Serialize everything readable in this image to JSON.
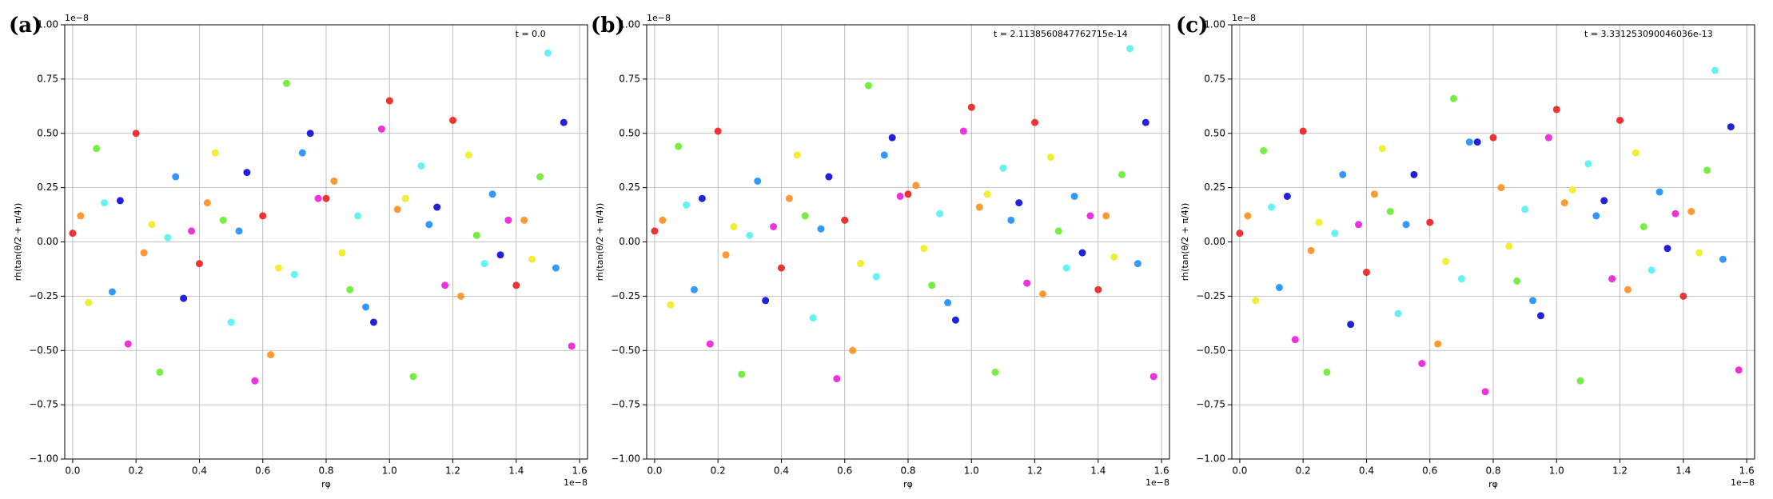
{
  "chart_data": [
    {
      "type": "scatter",
      "panel_label": "(a)",
      "annotation": "t = 0.0",
      "xlabel": "rφ",
      "ylabel": "rh(tan(θ/2 + π/4))",
      "x_offset": "1e−8",
      "y_offset": "1e−8",
      "grid": true,
      "xlim": [
        -0.025,
        1.625
      ],
      "ylim": [
        -1,
        1
      ],
      "xticks": [
        {
          "value": 0,
          "label": "0.0"
        },
        0.2,
        0.4,
        0.6,
        0.8,
        {
          "value": 1,
          "label": "1.0"
        },
        1.2,
        1.4,
        1.6
      ],
      "yticks": [
        {
          "value": -1,
          "label": "−1.00"
        },
        {
          "value": -0.75,
          "label": "−0.75"
        },
        {
          "value": -0.5,
          "label": "−0.50"
        },
        {
          "value": -0.25,
          "label": "−0.25"
        },
        {
          "value": 0,
          "label": "0.00"
        },
        0.25,
        {
          "value": 0.5,
          "label": "0.50"
        },
        0.75,
        {
          "value": 1,
          "label": "1.00"
        }
      ],
      "series": [
        {
          "color": "#ee3333",
          "x": [
            0.0,
            0.2,
            0.4,
            0.6,
            0.8,
            1.0,
            1.2,
            1.4
          ],
          "values": [
            0.04,
            0.5,
            -0.1,
            0.12,
            0.2,
            0.65,
            0.56,
            -0.2
          ]
        },
        {
          "color": "#ff9933",
          "x": [
            0.025,
            0.225,
            0.425,
            0.625,
            0.825,
            1.025,
            1.225,
            1.425
          ],
          "values": [
            0.12,
            -0.05,
            0.18,
            -0.52,
            0.28,
            0.15,
            -0.25,
            0.1
          ]
        },
        {
          "color": "#f2ee33",
          "x": [
            0.05,
            0.25,
            0.45,
            0.65,
            0.85,
            1.05,
            1.25,
            1.45
          ],
          "values": [
            -0.28,
            0.08,
            0.41,
            -0.12,
            -0.05,
            0.2,
            0.4,
            -0.08
          ]
        },
        {
          "color": "#77ee44",
          "x": [
            0.075,
            0.275,
            0.475,
            0.675,
            0.875,
            1.075,
            1.275,
            1.475
          ],
          "values": [
            0.43,
            -0.6,
            0.1,
            0.73,
            -0.22,
            -0.62,
            0.03,
            0.3
          ]
        },
        {
          "color": "#66f2f2",
          "x": [
            0.1,
            0.3,
            0.5,
            0.7,
            0.9,
            1.1,
            1.3,
            1.5
          ],
          "values": [
            0.18,
            0.02,
            -0.37,
            -0.15,
            0.12,
            0.35,
            -0.1,
            0.87
          ]
        },
        {
          "color": "#3399ff",
          "x": [
            0.125,
            0.325,
            0.525,
            0.725,
            0.925,
            1.125,
            1.325,
            1.525
          ],
          "values": [
            -0.23,
            0.3,
            0.05,
            0.41,
            -0.3,
            0.08,
            0.22,
            -0.12
          ]
        },
        {
          "color": "#2222dd",
          "x": [
            0.15,
            0.35,
            0.55,
            0.75,
            0.95,
            1.15,
            1.35,
            1.55
          ],
          "values": [
            0.19,
            -0.26,
            0.32,
            0.5,
            -0.37,
            0.16,
            -0.06,
            0.55
          ]
        },
        {
          "color": "#ee33dd",
          "x": [
            0.175,
            0.375,
            0.575,
            0.775,
            0.975,
            1.175,
            1.375,
            1.575
          ],
          "values": [
            -0.47,
            0.05,
            -0.64,
            0.2,
            0.52,
            -0.2,
            0.1,
            -0.48
          ]
        }
      ]
    },
    {
      "type": "scatter",
      "panel_label": "(b)",
      "annotation": "t = 2.1138560847762715e-14",
      "xlabel": "rφ",
      "ylabel": "rh(tan(θ/2 + π/4))",
      "x_offset": "1e−8",
      "y_offset": "1e−8",
      "grid": true,
      "xlim": [
        -0.025,
        1.625
      ],
      "ylim": [
        -1,
        1
      ],
      "xticks": [
        {
          "value": 0,
          "label": "0.0"
        },
        0.2,
        0.4,
        0.6,
        0.8,
        {
          "value": 1,
          "label": "1.0"
        },
        1.2,
        1.4,
        1.6
      ],
      "yticks": [
        {
          "value": -1,
          "label": "−1.00"
        },
        {
          "value": -0.75,
          "label": "−0.75"
        },
        {
          "value": -0.5,
          "label": "−0.50"
        },
        {
          "value": -0.25,
          "label": "−0.25"
        },
        {
          "value": 0,
          "label": "0.00"
        },
        0.25,
        {
          "value": 0.5,
          "label": "0.50"
        },
        0.75,
        {
          "value": 1,
          "label": "1.00"
        }
      ],
      "series": [
        {
          "color": "#ee3333",
          "x": [
            0.0,
            0.2,
            0.4,
            0.6,
            0.8,
            1.0,
            1.2,
            1.4
          ],
          "values": [
            0.05,
            0.51,
            -0.12,
            0.1,
            0.22,
            0.62,
            0.55,
            -0.22
          ]
        },
        {
          "color": "#ff9933",
          "x": [
            0.025,
            0.225,
            0.425,
            0.625,
            0.825,
            1.025,
            1.225,
            1.425
          ],
          "values": [
            0.1,
            -0.06,
            0.2,
            -0.5,
            0.26,
            0.16,
            -0.24,
            0.12
          ]
        },
        {
          "color": "#f2ee33",
          "x": [
            0.05,
            0.25,
            0.45,
            0.65,
            0.85,
            1.05,
            1.25,
            1.45
          ],
          "values": [
            -0.29,
            0.07,
            0.4,
            -0.1,
            -0.03,
            0.22,
            0.39,
            -0.07
          ]
        },
        {
          "color": "#77ee44",
          "x": [
            0.075,
            0.275,
            0.475,
            0.675,
            0.875,
            1.075,
            1.275,
            1.475
          ],
          "values": [
            0.44,
            -0.61,
            0.12,
            0.72,
            -0.2,
            -0.6,
            0.05,
            0.31
          ]
        },
        {
          "color": "#66f2f2",
          "x": [
            0.1,
            0.3,
            0.5,
            0.7,
            0.9,
            1.1,
            1.3,
            1.5
          ],
          "values": [
            0.17,
            0.03,
            -0.35,
            -0.16,
            0.13,
            0.34,
            -0.12,
            0.89
          ]
        },
        {
          "color": "#3399ff",
          "x": [
            0.125,
            0.325,
            0.525,
            0.725,
            0.925,
            1.125,
            1.325,
            1.525
          ],
          "values": [
            -0.22,
            0.28,
            0.06,
            0.4,
            -0.28,
            0.1,
            0.21,
            -0.1
          ]
        },
        {
          "color": "#2222dd",
          "x": [
            0.15,
            0.35,
            0.55,
            0.75,
            0.95,
            1.15,
            1.35,
            1.55
          ],
          "values": [
            0.2,
            -0.27,
            0.3,
            0.48,
            -0.36,
            0.18,
            -0.05,
            0.55
          ]
        },
        {
          "color": "#ee33dd",
          "x": [
            0.175,
            0.375,
            0.575,
            0.775,
            0.975,
            1.175,
            1.375,
            1.575
          ],
          "values": [
            -0.47,
            0.07,
            -0.63,
            0.21,
            0.51,
            -0.19,
            0.12,
            -0.62
          ]
        }
      ]
    },
    {
      "type": "scatter",
      "panel_label": "(c)",
      "annotation": "t = 3.331253090046036e-13",
      "xlabel": "rφ",
      "ylabel": "rh(tan(θ/2 + π/4))",
      "x_offset": "1e−8",
      "y_offset": "1e−8",
      "grid": true,
      "xlim": [
        -0.025,
        1.625
      ],
      "ylim": [
        -1,
        1
      ],
      "xticks": [
        {
          "value": 0,
          "label": "0.0"
        },
        0.2,
        0.4,
        0.6,
        0.8,
        {
          "value": 1,
          "label": "1.0"
        },
        1.2,
        1.4,
        1.6
      ],
      "yticks": [
        {
          "value": -1,
          "label": "−1.00"
        },
        {
          "value": -0.75,
          "label": "−0.75"
        },
        {
          "value": -0.5,
          "label": "−0.50"
        },
        {
          "value": -0.25,
          "label": "−0.25"
        },
        {
          "value": 0,
          "label": "0.00"
        },
        0.25,
        {
          "value": 0.5,
          "label": "0.50"
        },
        0.75,
        {
          "value": 1,
          "label": "1.00"
        }
      ],
      "series": [
        {
          "color": "#ee3333",
          "x": [
            0.0,
            0.2,
            0.4,
            0.6,
            0.8,
            1.0,
            1.2,
            1.4
          ],
          "values": [
            0.04,
            0.51,
            -0.14,
            0.09,
            0.48,
            0.61,
            0.56,
            -0.25
          ]
        },
        {
          "color": "#ff9933",
          "x": [
            0.025,
            0.225,
            0.425,
            0.625,
            0.825,
            1.025,
            1.225,
            1.425
          ],
          "values": [
            0.12,
            -0.04,
            0.22,
            -0.47,
            0.25,
            0.18,
            -0.22,
            0.14
          ]
        },
        {
          "color": "#f2ee33",
          "x": [
            0.05,
            0.25,
            0.45,
            0.65,
            0.85,
            1.05,
            1.25,
            1.45
          ],
          "values": [
            -0.27,
            0.09,
            0.43,
            -0.09,
            -0.02,
            0.24,
            0.41,
            -0.05
          ]
        },
        {
          "color": "#77ee44",
          "x": [
            0.075,
            0.275,
            0.475,
            0.675,
            0.875,
            1.075,
            1.275,
            1.475
          ],
          "values": [
            0.42,
            -0.6,
            0.14,
            0.66,
            -0.18,
            -0.64,
            0.07,
            0.33
          ]
        },
        {
          "color": "#66f2f2",
          "x": [
            0.1,
            0.3,
            0.5,
            0.7,
            0.9,
            1.1,
            1.3,
            1.5
          ],
          "values": [
            0.16,
            0.04,
            -0.33,
            -0.17,
            0.15,
            0.36,
            -0.13,
            0.79
          ]
        },
        {
          "color": "#3399ff",
          "x": [
            0.125,
            0.325,
            0.525,
            0.725,
            0.925,
            1.125,
            1.325,
            1.525
          ],
          "values": [
            -0.21,
            0.31,
            0.08,
            0.46,
            -0.27,
            0.12,
            0.23,
            -0.08
          ]
        },
        {
          "color": "#2222dd",
          "x": [
            0.15,
            0.35,
            0.55,
            0.75,
            0.95,
            1.15,
            1.35,
            1.55
          ],
          "values": [
            0.21,
            -0.38,
            0.31,
            0.46,
            -0.34,
            0.19,
            -0.03,
            0.53
          ]
        },
        {
          "color": "#ee33dd",
          "x": [
            0.175,
            0.375,
            0.575,
            0.775,
            0.975,
            1.175,
            1.375,
            1.575
          ],
          "values": [
            -0.45,
            0.08,
            -0.56,
            -0.69,
            0.48,
            -0.17,
            0.13,
            -0.59
          ]
        }
      ]
    }
  ]
}
